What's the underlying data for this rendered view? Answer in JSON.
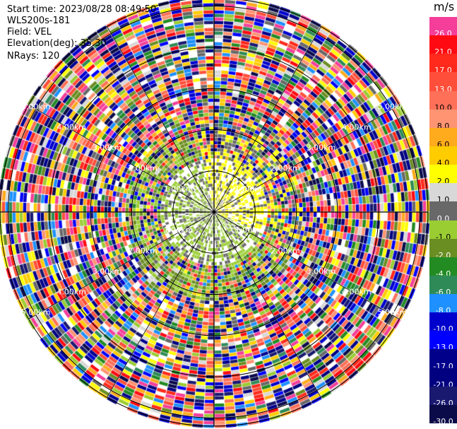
{
  "info": {
    "start_time": "Start time: 2023/08/28 08:49:50",
    "instrument": "WLS200s-181",
    "field": "Field: VEL",
    "elevation": "Elevation(deg): 35.30",
    "nrays": "NRays: 120"
  },
  "range_rings": [
    {
      "range_km": 1,
      "label": "1.00km"
    },
    {
      "range_km": 2,
      "label": "2.00km"
    },
    {
      "range_km": 3,
      "label": "3.00km"
    },
    {
      "range_km": 4,
      "label": "4.00km"
    },
    {
      "range_km": 5,
      "label": "5.00km"
    }
  ],
  "max_range_km": 5.2,
  "colorbar": {
    "units": "m/s",
    "entries": [
      {
        "label": "26.0",
        "color": "#f43e9a"
      },
      {
        "label": "21.0",
        "color": "#ff0a12"
      },
      {
        "label": "17.0",
        "color": "#ff2a1b"
      },
      {
        "label": "13.0",
        "color": "#ff4f3a"
      },
      {
        "label": "10.0",
        "color": "#ff7058"
      },
      {
        "label": "8.0",
        "color": "#ff9472"
      },
      {
        "label": "6.0",
        "color": "#ffab1d"
      },
      {
        "label": "4.0",
        "color": "#ffcc00"
      },
      {
        "label": "2.0",
        "color": "#ffff00"
      },
      {
        "label": "1.0",
        "color": "#d8d8d8"
      },
      {
        "label": "0.0",
        "color": "#686868"
      },
      {
        "label": "-1.0",
        "color": "#9acd32"
      },
      {
        "label": "-2.0",
        "color": "#6b8e23"
      },
      {
        "label": "-4.0",
        "color": "#228b22"
      },
      {
        "label": "-6.0",
        "color": "#2e8b57"
      },
      {
        "label": "-8.0",
        "color": "#1e90ff"
      },
      {
        "label": "-10.0",
        "color": "#0000cd"
      },
      {
        "label": "-13.0",
        "color": "#0000ff"
      },
      {
        "label": "-17.0",
        "color": "#00008b"
      },
      {
        "label": "-21.0",
        "color": "#000080"
      },
      {
        "label": "-26.0",
        "color": "#191970"
      },
      {
        "label": "-30.0",
        "color": "#0b0b4a"
      }
    ]
  }
}
